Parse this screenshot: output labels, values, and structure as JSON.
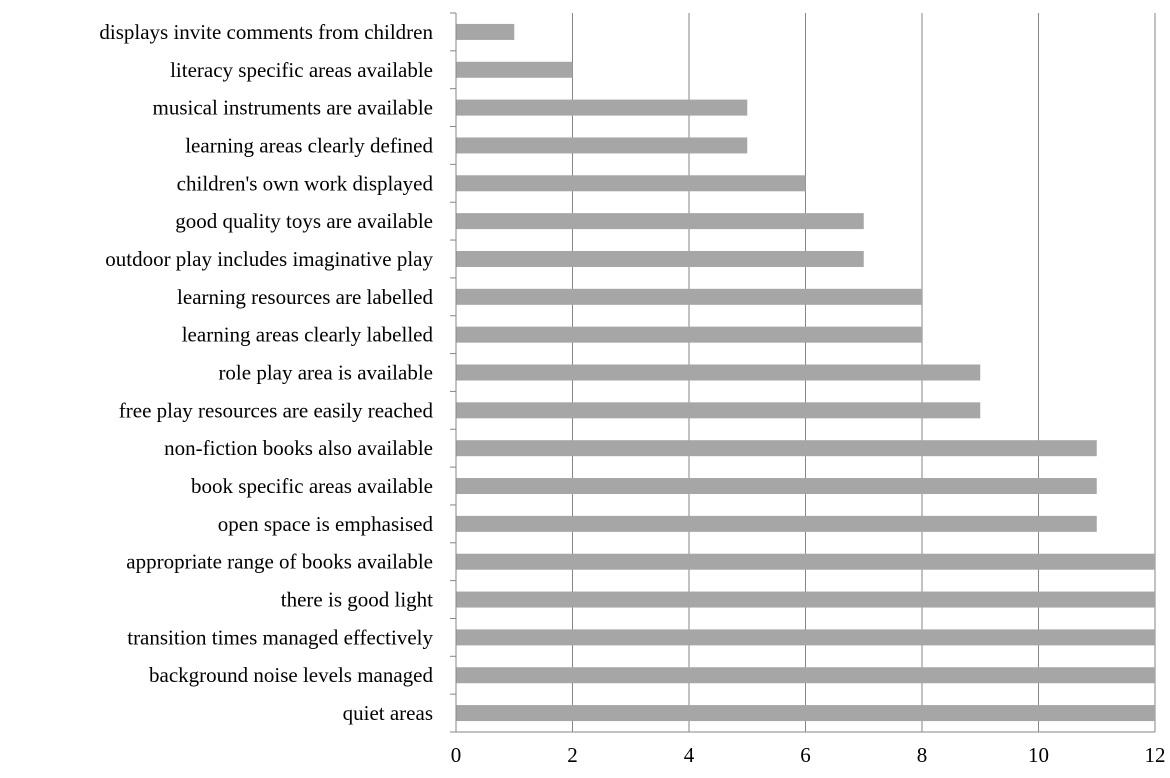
{
  "chart_data": {
    "type": "bar",
    "orientation": "horizontal",
    "categories": [
      "displays invite comments from children",
      "literacy specific areas available",
      "musical instruments are available",
      "learning areas clearly defined",
      "children's own work displayed",
      "good quality toys are available",
      "outdoor play includes imaginative play",
      "learning resources are labelled",
      "learning areas clearly labelled",
      "role play area is available",
      "free play resources are easily reached",
      "non-fiction books also available",
      "book specific areas available",
      "open space is emphasised",
      "appropriate range of books available",
      "there is good light",
      "transition times managed effectively",
      "background noise levels managed",
      "quiet areas"
    ],
    "values": [
      1,
      2,
      5,
      5,
      6,
      7,
      7,
      8,
      8,
      9,
      9,
      11,
      11,
      11,
      12,
      12,
      12,
      12,
      12
    ],
    "xlim": [
      0,
      12
    ],
    "xticks": [
      "0",
      "2",
      "4",
      "6",
      "8",
      "10",
      "12"
    ],
    "grid": true,
    "bar_color": "#a6a6a6",
    "grid_color": "#868686",
    "title": "",
    "xlabel": "",
    "ylabel": ""
  }
}
